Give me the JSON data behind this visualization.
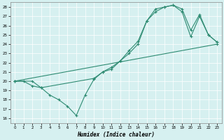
{
  "xlabel": "Humidex (Indice chaleur)",
  "xlim": [
    -0.5,
    23.5
  ],
  "ylim": [
    15.5,
    28.5
  ],
  "xticks": [
    0,
    1,
    2,
    3,
    4,
    5,
    6,
    7,
    8,
    9,
    10,
    11,
    12,
    13,
    14,
    15,
    16,
    17,
    18,
    19,
    20,
    21,
    22,
    23
  ],
  "yticks": [
    16,
    17,
    18,
    19,
    20,
    21,
    22,
    23,
    24,
    25,
    26,
    27,
    28
  ],
  "line_color": "#2e8b72",
  "bg_color": "#d6f0f0",
  "line1": {
    "x": [
      0,
      1,
      2,
      3,
      4,
      5,
      6,
      7,
      8,
      9,
      10,
      11,
      12,
      13,
      14,
      15,
      16,
      17,
      18,
      19,
      20,
      21,
      22,
      23
    ],
    "y": [
      20,
      20,
      19.5,
      19.3,
      18.5,
      18.0,
      17.3,
      16.3,
      18.5,
      20.2,
      21.0,
      21.3,
      22.2,
      23.0,
      24.0,
      26.5,
      27.8,
      28.0,
      28.2,
      27.5,
      24.8,
      27.0,
      25.0,
      24.2
    ]
  },
  "line2": {
    "x": [
      0,
      23
    ],
    "y": [
      20.0,
      24.0
    ]
  },
  "line3": {
    "x": [
      0,
      2,
      3,
      9,
      10,
      11,
      12,
      13,
      14,
      15,
      16,
      17,
      18,
      19,
      20,
      21,
      22,
      23
    ],
    "y": [
      20,
      20,
      19.3,
      20.3,
      21.0,
      21.5,
      22.2,
      23.3,
      24.3,
      26.5,
      27.5,
      28.0,
      28.2,
      27.8,
      25.5,
      27.2,
      25.0,
      24.2
    ]
  }
}
